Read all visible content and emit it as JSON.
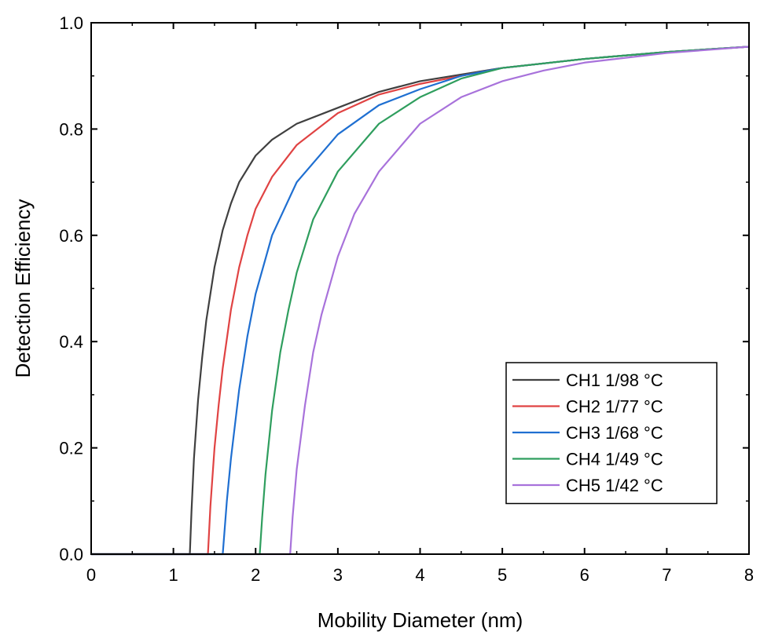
{
  "chart_data": {
    "type": "line",
    "title": "",
    "xlabel": "Mobility Diameter (nm)",
    "ylabel": "Detection Efficiency",
    "xlim": [
      0,
      8
    ],
    "ylim": [
      0,
      1
    ],
    "xticks": [
      "0",
      "1",
      "2",
      "3",
      "4",
      "5",
      "6",
      "7",
      "8"
    ],
    "yticks": [
      "0.0",
      "0.2",
      "0.4",
      "0.6",
      "0.8",
      "1.0"
    ],
    "grid": false,
    "legend_position": "bottom-right",
    "series": [
      {
        "name": "CH1 1/98 °C",
        "color": "#404040",
        "x": [
          0,
          1.2,
          1.22,
          1.25,
          1.3,
          1.35,
          1.4,
          1.5,
          1.6,
          1.7,
          1.8,
          2.0,
          2.2,
          2.5,
          3.0,
          3.5,
          4.0,
          5.0,
          6.0,
          7.0,
          8.0
        ],
        "y": [
          0,
          0,
          0.08,
          0.18,
          0.29,
          0.37,
          0.44,
          0.54,
          0.61,
          0.66,
          0.7,
          0.75,
          0.78,
          0.81,
          0.84,
          0.87,
          0.89,
          0.915,
          0.932,
          0.945,
          0.955
        ]
      },
      {
        "name": "CH2 1/77 °C",
        "color": "#e04343",
        "x": [
          0,
          1.42,
          1.45,
          1.5,
          1.55,
          1.6,
          1.7,
          1.8,
          1.9,
          2.0,
          2.2,
          2.5,
          3.0,
          3.5,
          4.0,
          5.0,
          6.0,
          7.0,
          8.0
        ],
        "y": [
          0,
          0,
          0.09,
          0.2,
          0.28,
          0.35,
          0.46,
          0.54,
          0.6,
          0.65,
          0.71,
          0.77,
          0.83,
          0.865,
          0.885,
          0.915,
          0.932,
          0.945,
          0.955
        ]
      },
      {
        "name": "CH3 1/68 °C",
        "color": "#1f6fd1",
        "x": [
          0,
          1.6,
          1.65,
          1.7,
          1.8,
          1.9,
          2.0,
          2.2,
          2.5,
          3.0,
          3.5,
          4.0,
          4.5,
          5.0,
          6.0,
          7.0,
          8.0
        ],
        "y": [
          0,
          0,
          0.1,
          0.18,
          0.31,
          0.41,
          0.49,
          0.6,
          0.7,
          0.79,
          0.845,
          0.875,
          0.9,
          0.915,
          0.932,
          0.945,
          0.955
        ]
      },
      {
        "name": "CH4 1/49 °C",
        "color": "#2f9e5e",
        "x": [
          0,
          2.05,
          2.08,
          2.12,
          2.2,
          2.3,
          2.4,
          2.5,
          2.7,
          3.0,
          3.5,
          4.0,
          4.5,
          5.0,
          6.0,
          7.0,
          8.0
        ],
        "y": [
          0,
          0,
          0.07,
          0.15,
          0.27,
          0.38,
          0.46,
          0.53,
          0.63,
          0.72,
          0.81,
          0.86,
          0.895,
          0.915,
          0.932,
          0.945,
          0.955
        ]
      },
      {
        "name": "CH5 1/42 °C",
        "color": "#a872db",
        "x": [
          0,
          2.42,
          2.45,
          2.5,
          2.6,
          2.7,
          2.8,
          3.0,
          3.2,
          3.5,
          4.0,
          4.5,
          5.0,
          5.5,
          6.0,
          7.0,
          8.0
        ],
        "y": [
          0,
          0,
          0.07,
          0.16,
          0.28,
          0.38,
          0.45,
          0.56,
          0.64,
          0.72,
          0.81,
          0.86,
          0.89,
          0.91,
          0.925,
          0.943,
          0.955
        ]
      }
    ]
  }
}
